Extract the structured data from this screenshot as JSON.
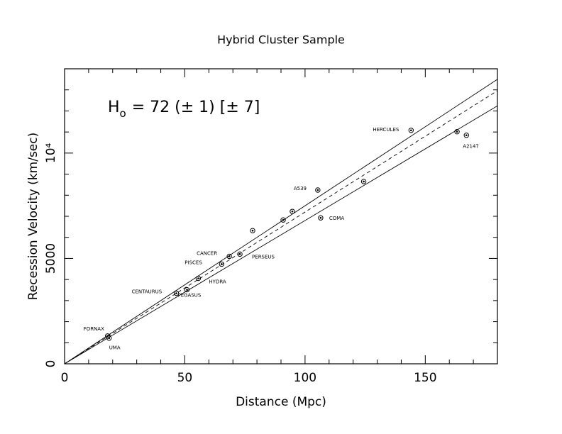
{
  "chart_data": {
    "type": "scatter",
    "title": "Hybrid Cluster Sample",
    "x_label": "Distance (Mpc)",
    "y_label": "Recession Velocity (km/sec)",
    "annotation": {
      "main": "H",
      "sub": "o",
      "rest": "= 72  (± 1)  [± 7]"
    },
    "xlim": [
      0,
      180
    ],
    "ylim": [
      0,
      14000
    ],
    "xticks": [
      0,
      50,
      100,
      150
    ],
    "yticks": [
      0,
      5000,
      {
        "value": 10000,
        "label": "10⁴"
      }
    ],
    "xminorticks": [
      10,
      20,
      30,
      40,
      60,
      70,
      80,
      90,
      110,
      120,
      130,
      140,
      160,
      170
    ],
    "yminorticks": [
      1000,
      2000,
      3000,
      4000,
      6000,
      7000,
      8000,
      9000,
      11000,
      12000,
      13000
    ],
    "x": [
      17.9,
      18.5,
      46.5,
      50.9,
      55.6,
      65.3,
      68.5,
      72.9,
      78.2,
      90.9,
      94.7,
      105.3,
      106.5,
      124.4,
      144.1,
      163.2,
      167.1
    ],
    "y": [
      1320,
      1220,
      3345,
      3515,
      4055,
      4730,
      5100,
      5205,
      6320,
      6825,
      7230,
      8245,
      6925,
      8650,
      11080,
      11015,
      10845
    ],
    "labels": [
      "FORNAX",
      "UMA",
      "CENTAURUS",
      "PEGASUS",
      "HYDRA",
      "PISCES",
      "CANCER",
      "PERSEUS",
      null,
      null,
      null,
      "A539",
      "COMA",
      null,
      "HERCULES",
      null,
      "A2147"
    ],
    "fit_lines": [
      {
        "slope": 75,
        "style": "solid"
      },
      {
        "slope": 72,
        "style": "dashed"
      },
      {
        "slope": 68,
        "style": "solid"
      }
    ]
  }
}
